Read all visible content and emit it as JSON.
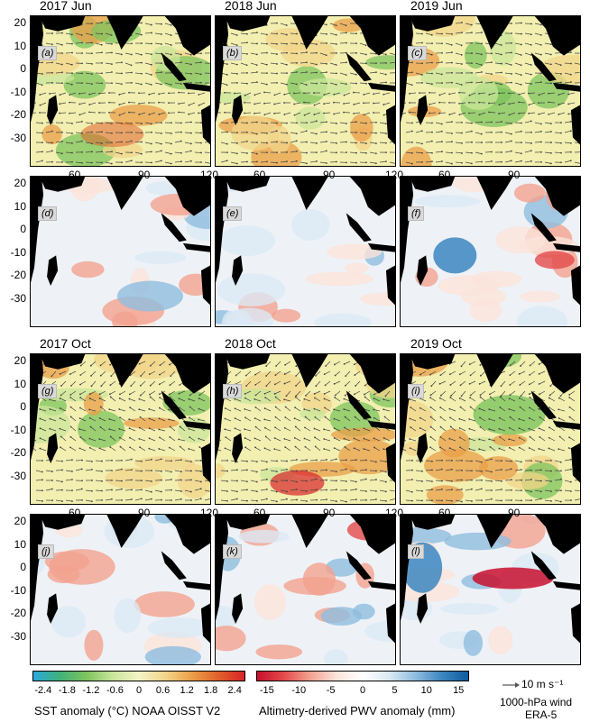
{
  "row_titles": {
    "jun_2017": "2017 Jun",
    "jun_2018": "2018 Jun",
    "jun_2019": "2019 Jun",
    "oct_2017": "2017 Oct",
    "oct_2018": "2018 Oct",
    "oct_2019": "2019 Oct"
  },
  "panel_labels": [
    "(a)",
    "(b)",
    "(c)",
    "(d)",
    "(e)",
    "(f)",
    "(g)",
    "(h)",
    "(i)",
    "(j)",
    "(k)",
    "(l)"
  ],
  "y_ticks": [
    "20",
    "10",
    "0",
    "-10",
    "-20",
    "-30"
  ],
  "x_ticks": [
    "60",
    "90",
    "120"
  ],
  "sst_colorbar": {
    "ticks": [
      "-2.4",
      "-1.8",
      "-1.2",
      "-0.6",
      "0",
      "0.6",
      "1.2",
      "1.8",
      "2.4"
    ],
    "label": "SST anomaly (°C) NOAA OISST V2",
    "colors": [
      "#2aa8dc",
      "#3fb27a",
      "#7cc45e",
      "#c9e59a",
      "#f4f4c6",
      "#f2d48a",
      "#ea9f4a",
      "#e0622b",
      "#d8232a"
    ]
  },
  "pwv_colorbar": {
    "ticks": [
      "-15",
      "-10",
      "-5",
      "0",
      "5",
      "10",
      "15"
    ],
    "label": "Altimetry-derived PWV anomaly (mm)",
    "colors": [
      "#c8102e",
      "#e34a4a",
      "#f3a18f",
      "#fbe3da",
      "#ffffff",
      "#dbe9f4",
      "#8fbddf",
      "#3c86c0",
      "#0f5a9e"
    ]
  },
  "wind_legend": {
    "arrow_label": "10 m s⁻¹",
    "line1": "1000-hPa wind",
    "line2": "ERA-5"
  }
}
